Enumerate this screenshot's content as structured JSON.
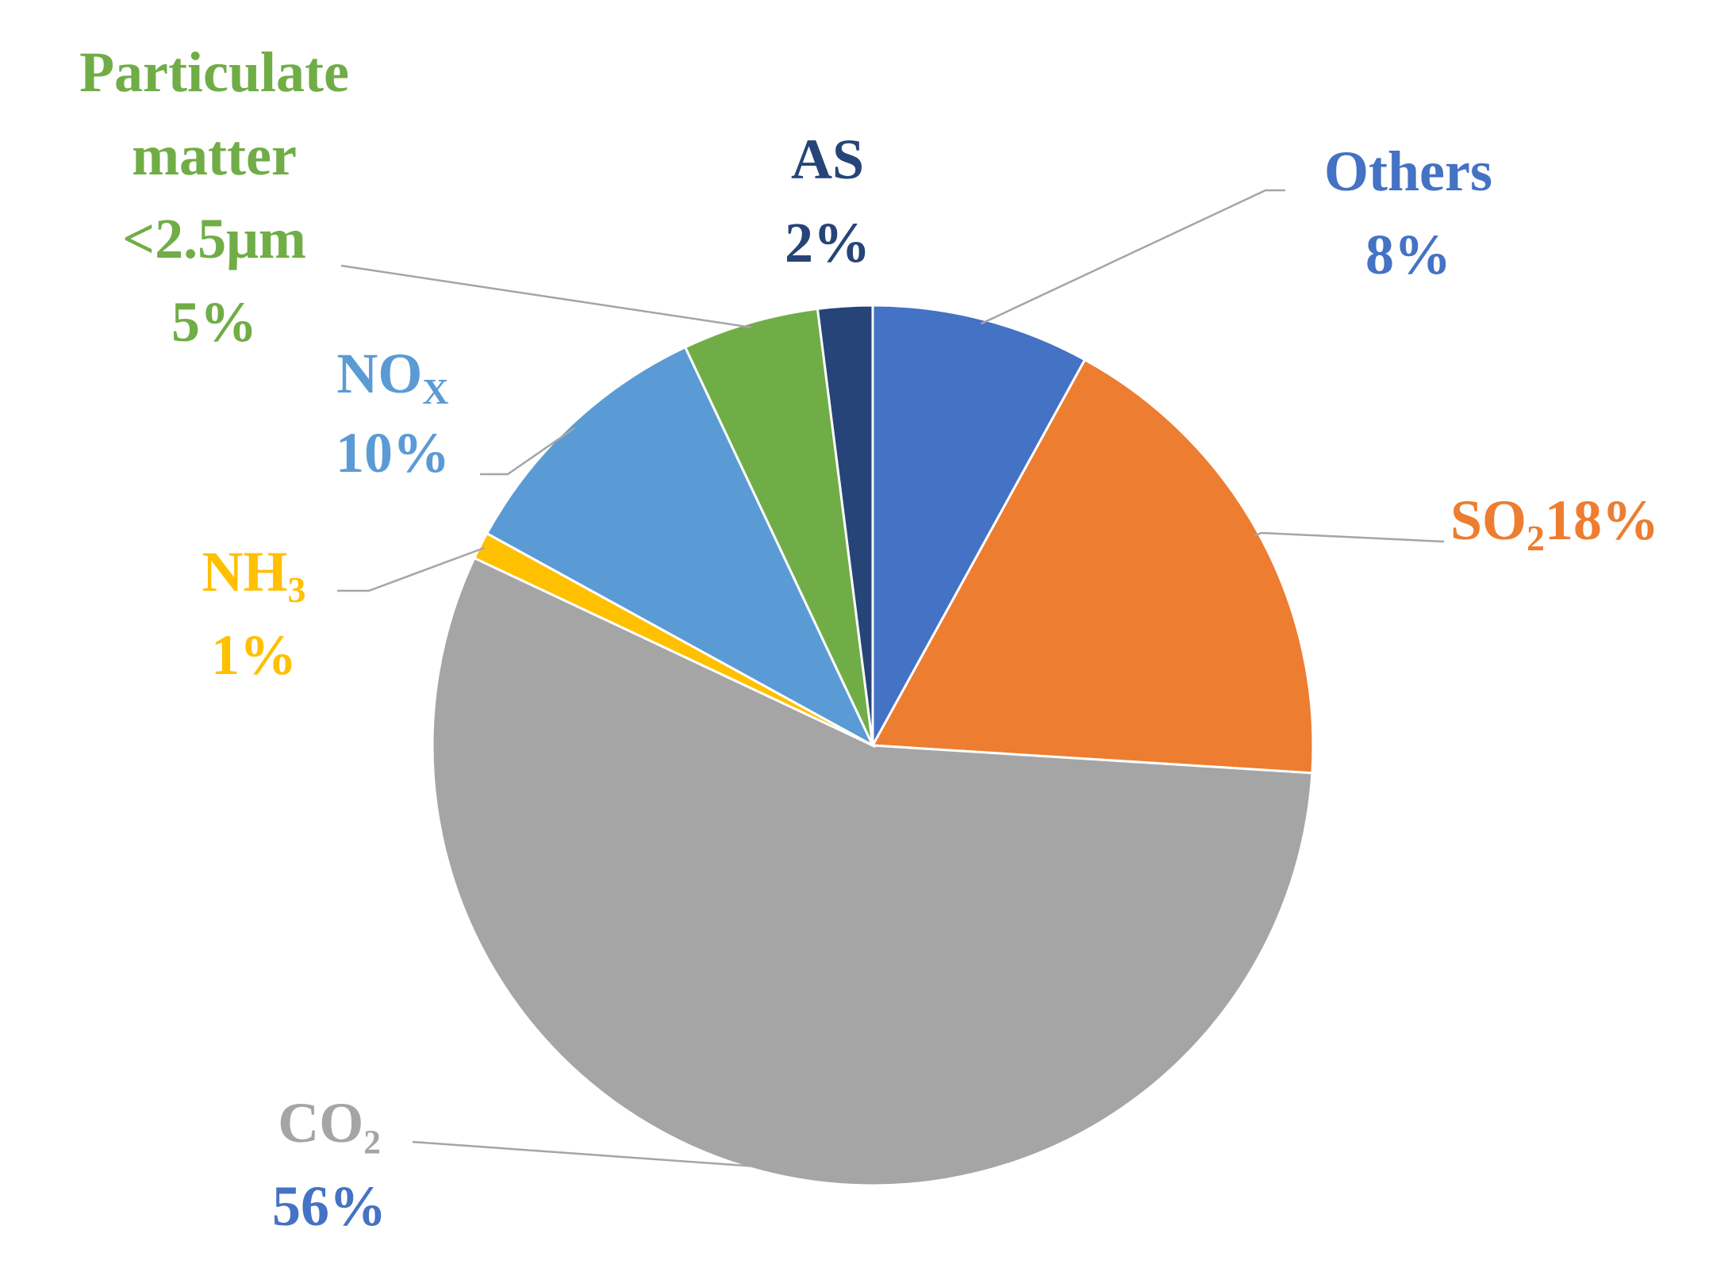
{
  "chart_data": {
    "type": "pie",
    "title": "",
    "start_angle_deg": 0,
    "direction": "clockwise",
    "slices": [
      {
        "key": "others",
        "name": "Others",
        "value": 8,
        "percent_label": "8%",
        "color": "#4472C4",
        "label_color": "#4472C4"
      },
      {
        "key": "so2",
        "name": "SO₂",
        "value": 18,
        "percent_label": "18%",
        "color": "#ED7D31",
        "label_color": "#ED7D31"
      },
      {
        "key": "co2",
        "name": "CO₂",
        "value": 56,
        "percent_label": "56%",
        "color": "#A5A5A5",
        "label_color": "#A5A5A5",
        "percent_color": "#4472C4"
      },
      {
        "key": "nh3",
        "name": "NH₃",
        "value": 1,
        "percent_label": "1%",
        "color": "#FFC000",
        "label_color": "#FFC000"
      },
      {
        "key": "nox",
        "name": "NOₓ",
        "value": 10,
        "percent_label": "10%",
        "color": "#5B9BD5",
        "label_color": "#5B9BD5"
      },
      {
        "key": "pm25",
        "name": "Particulate matter <2.5μm",
        "value": 5,
        "percent_label": "5%",
        "color": "#70AD47",
        "label_color": "#70AD47"
      },
      {
        "key": "as",
        "name": "AS",
        "value": 2,
        "percent_label": "2%",
        "color": "#264478",
        "label_color": "#264478"
      }
    ]
  },
  "labels": {
    "others": {
      "line1": "Others",
      "line2": "8%"
    },
    "so2": {
      "name_main": "SO",
      "name_sub": "2",
      "pct": "18%"
    },
    "co2": {
      "line1": "CO₂",
      "line2": "56%"
    },
    "nh3": {
      "name_main": "NH",
      "name_sub": "3",
      "pct": "1%"
    },
    "nox": {
      "name_main": "NO",
      "name_sub": "X",
      "pct": "10%"
    },
    "pm25": {
      "line1": "Particulate",
      "line2": "matter",
      "line3": "<2.5μm",
      "line4": "5%"
    },
    "as": {
      "line1": "AS",
      "line2": "2%"
    }
  },
  "leader_line_color": "#A5A5A5"
}
